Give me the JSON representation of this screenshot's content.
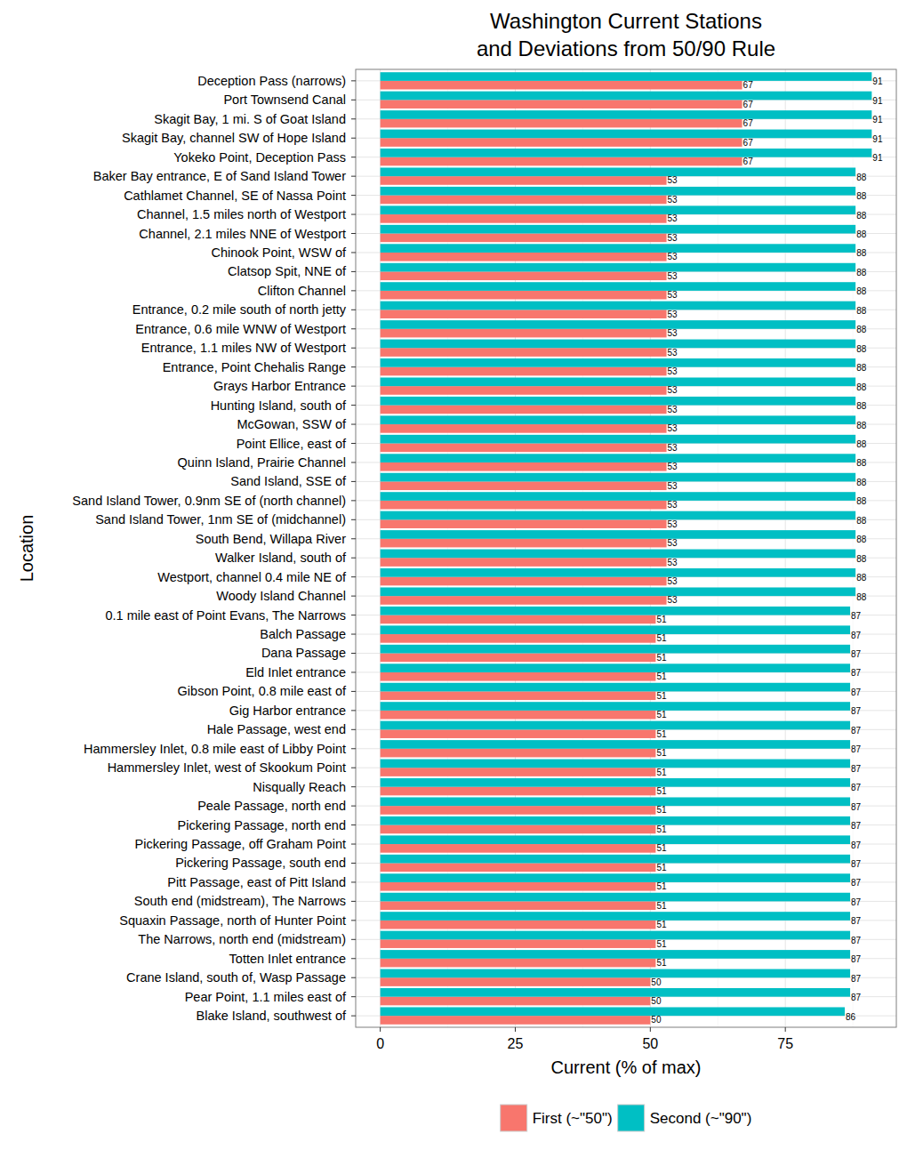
{
  "chart_data": {
    "type": "bar",
    "orientation": "horizontal",
    "title": "Washington Current Stations\nand Deviations from 50/90 Rule",
    "x_label": "Current (% of max)",
    "y_label": "Location",
    "categories": [
      "Deception Pass (narrows)",
      "Port Townsend Canal",
      "Skagit Bay, 1 mi. S of Goat Island",
      "Skagit Bay, channel SW of Hope Island",
      "Yokeko Point, Deception Pass",
      "Baker Bay entrance, E of Sand Island Tower",
      "Cathlamet Channel, SE of Nassa Point",
      "Channel, 1.5 miles north of Westport",
      "Channel, 2.1 miles NNE of Westport",
      "Chinook Point, WSW of",
      "Clatsop Spit, NNE of",
      "Clifton Channel",
      "Entrance, 0.2 mile south of north jetty",
      "Entrance, 0.6 mile WNW of Westport",
      "Entrance, 1.1 miles NW of Westport",
      "Entrance, Point Chehalis Range",
      "Grays Harbor Entrance",
      "Hunting Island, south of",
      "McGowan, SSW of",
      "Point Ellice, east of",
      "Quinn Island, Prairie Channel",
      "Sand Island, SSE of",
      "Sand Island Tower, 0.9nm SE of (north channel)",
      "Sand Island Tower, 1nm SE of (midchannel)",
      "South Bend, Willapa River",
      "Walker Island, south of",
      "Westport, channel 0.4 mile NE of",
      "Woody Island Channel",
      "0.1 mile east of Point Evans, The Narrows",
      "Balch Passage",
      "Dana Passage",
      "Eld Inlet entrance",
      "Gibson Point, 0.8 mile east of",
      "Gig Harbor entrance",
      "Hale Passage, west end",
      "Hammersley Inlet, 0.8 mile east of Libby Point",
      "Hammersley Inlet, west of Skookum Point",
      "Nisqually Reach",
      "Peale Passage, north end",
      "Pickering Passage, north end",
      "Pickering Passage, off Graham Point",
      "Pickering Passage, south end",
      "Pitt Passage, east of Pitt Island",
      "South end (midstream), The Narrows",
      "Squaxin Passage, north of Hunter Point",
      "The Narrows, north end (midstream)",
      "Totten Inlet entrance",
      "Crane Island, south of, Wasp Passage",
      "Pear Point, 1.1 miles east of",
      "Blake Island, southwest of"
    ],
    "series": [
      {
        "name": "First (~\"50\")",
        "color": "#F8766D",
        "values": [
          67,
          67,
          67,
          67,
          67,
          53,
          53,
          53,
          53,
          53,
          53,
          53,
          53,
          53,
          53,
          53,
          53,
          53,
          53,
          53,
          53,
          53,
          53,
          53,
          53,
          53,
          53,
          53,
          51,
          51,
          51,
          51,
          51,
          51,
          51,
          51,
          51,
          51,
          51,
          51,
          51,
          51,
          51,
          51,
          51,
          51,
          51,
          50,
          50,
          50
        ]
      },
      {
        "name": "Second (~\"90\")",
        "color": "#00BFC4",
        "values": [
          91,
          91,
          91,
          91,
          91,
          88,
          88,
          88,
          88,
          88,
          88,
          88,
          88,
          88,
          88,
          88,
          88,
          88,
          88,
          88,
          88,
          88,
          88,
          88,
          88,
          88,
          88,
          88,
          87,
          87,
          87,
          87,
          87,
          87,
          87,
          87,
          87,
          87,
          87,
          87,
          87,
          87,
          87,
          87,
          87,
          87,
          87,
          87,
          87,
          86
        ]
      }
    ],
    "xlim": [
      -4.55,
      95.55
    ],
    "xticks": [
      0,
      25,
      50,
      75
    ],
    "grid": true,
    "legend": "bottom",
    "data_labels": true
  }
}
